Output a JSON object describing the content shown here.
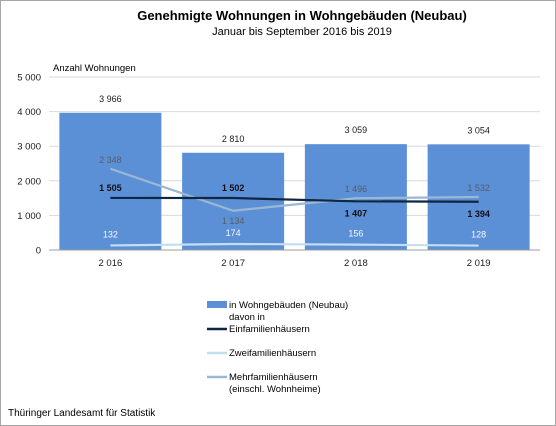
{
  "chart_data": {
    "type": "bar",
    "title": "Genehmigte Wohnungen in Wohngebäuden (Neubau)",
    "subtitle": "Januar bis September 2016 bis 2019",
    "ylabel": "Anzahl Wohnungen",
    "categories": [
      "2 016",
      "2 017",
      "2 018",
      "2 019"
    ],
    "ylim": [
      0,
      5000
    ],
    "yticks": [
      0,
      1000,
      2000,
      3000,
      4000,
      5000
    ],
    "ytick_labels": [
      "0",
      "1 000",
      "2 000",
      "3 000",
      "4 000",
      "5 000"
    ],
    "grid": true,
    "legend_position": "bottom",
    "series": [
      {
        "name": "in Wohngebäuden (Neubau)",
        "kind": "bar",
        "color": "#5b8fd6",
        "values": [
          3966,
          2810,
          3059,
          3054
        ],
        "labels": [
          "3 966",
          "2 810",
          "3 059",
          "3 054"
        ]
      },
      {
        "name": "davon in Einfamilienhäusern",
        "kind": "line",
        "color": "#0f2742",
        "values": [
          1505,
          1502,
          1407,
          1394
        ],
        "labels": [
          "1 505",
          "1 502",
          "1 407",
          "1 394"
        ]
      },
      {
        "name": "Zweifamilienhäusern",
        "kind": "line",
        "color": "#c3deef",
        "values": [
          132,
          174,
          156,
          128
        ],
        "labels": [
          "132",
          "174",
          "156",
          "128"
        ]
      },
      {
        "name": "Mehrfamilienhäusern (einschl. Wohnheime)",
        "kind": "line",
        "color": "#9ab7d3",
        "values": [
          2348,
          1134,
          1496,
          1532
        ],
        "labels": [
          "2 348",
          "1 134",
          "1 496",
          "1 532"
        ]
      }
    ]
  },
  "legend": {
    "bar_label": "in Wohngebäuden (Neubau)",
    "davon_label": "davon in",
    "efh_label": "Einfamilienhäusern",
    "zfh_label": "Zweifamilienhäusern",
    "mfh_label_1": "Mehrfamilienhäusern",
    "mfh_label_2": "(einschl. Wohnheime)"
  },
  "source": "Thüringer Landesamt für Statistik"
}
